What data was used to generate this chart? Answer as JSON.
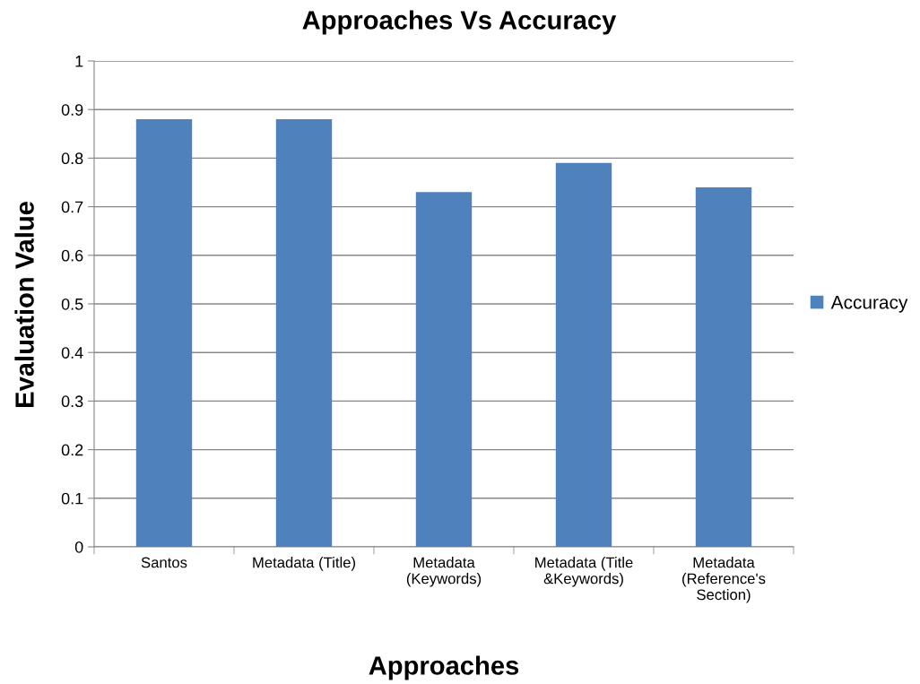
{
  "chart_data": {
    "type": "bar",
    "title": "Approaches Vs Accuracy",
    "xlabel": "Approaches",
    "ylabel": "Evaluation Value",
    "categories": [
      "Santos",
      "Metadata (Title)",
      "Metadata\n(Keywords)",
      "Metadata (Title\n&Keywords)",
      "Metadata\n(Reference's\nSection)"
    ],
    "series": [
      {
        "name": "Accuracy",
        "color": "#4f81bd",
        "values": [
          0.88,
          0.88,
          0.73,
          0.79,
          0.74
        ]
      }
    ],
    "ylim": [
      0,
      1
    ],
    "yticks": [
      0,
      0.1,
      0.2,
      0.3,
      0.4,
      0.5,
      0.6,
      0.7,
      0.8,
      0.9,
      1
    ],
    "grid": "y",
    "legend": "right"
  }
}
